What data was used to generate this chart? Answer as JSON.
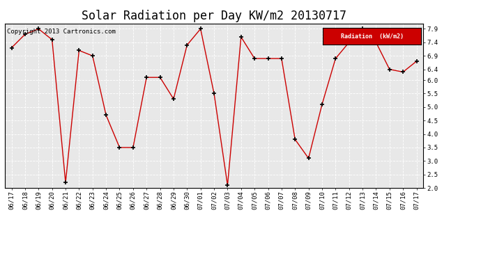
{
  "title": "Solar Radiation per Day KW/m2 20130717",
  "copyright": "Copyright 2013 Cartronics.com",
  "legend_label": "Radiation  (kW/m2)",
  "dates": [
    "06/17",
    "06/18",
    "06/19",
    "06/20",
    "06/21",
    "06/22",
    "06/23",
    "06/24",
    "06/25",
    "06/26",
    "06/27",
    "06/28",
    "06/29",
    "06/30",
    "07/01",
    "07/02",
    "07/03",
    "07/04",
    "07/05",
    "07/06",
    "07/07",
    "07/08",
    "07/09",
    "07/10",
    "07/11",
    "07/12",
    "07/13",
    "07/14",
    "07/15",
    "07/16",
    "07/17"
  ],
  "values": [
    7.2,
    7.7,
    7.9,
    7.5,
    2.2,
    7.1,
    6.9,
    4.7,
    3.5,
    3.5,
    6.1,
    6.1,
    5.3,
    7.3,
    7.9,
    5.5,
    2.1,
    7.6,
    6.8,
    6.8,
    6.8,
    3.8,
    3.1,
    5.1,
    6.8,
    7.4,
    7.9,
    7.4,
    6.4,
    6.3,
    6.7
  ],
  "line_color": "#cc0000",
  "marker": "+",
  "marker_color": "black",
  "marker_size": 5,
  "marker_linewidth": 1.2,
  "line_width": 1.0,
  "bg_color": "#ffffff",
  "plot_bg_color": "#e8e8e8",
  "grid_color": "#ffffff",
  "ylim": [
    2.0,
    8.1
  ],
  "yticks": [
    2.0,
    2.5,
    3.0,
    3.5,
    4.0,
    4.5,
    5.0,
    5.5,
    6.0,
    6.4,
    6.9,
    7.4,
    7.9
  ],
  "legend_bg": "#cc0000",
  "legend_text_color": "#ffffff",
  "title_fontsize": 12,
  "tick_fontsize": 6.5,
  "copyright_fontsize": 6.5
}
